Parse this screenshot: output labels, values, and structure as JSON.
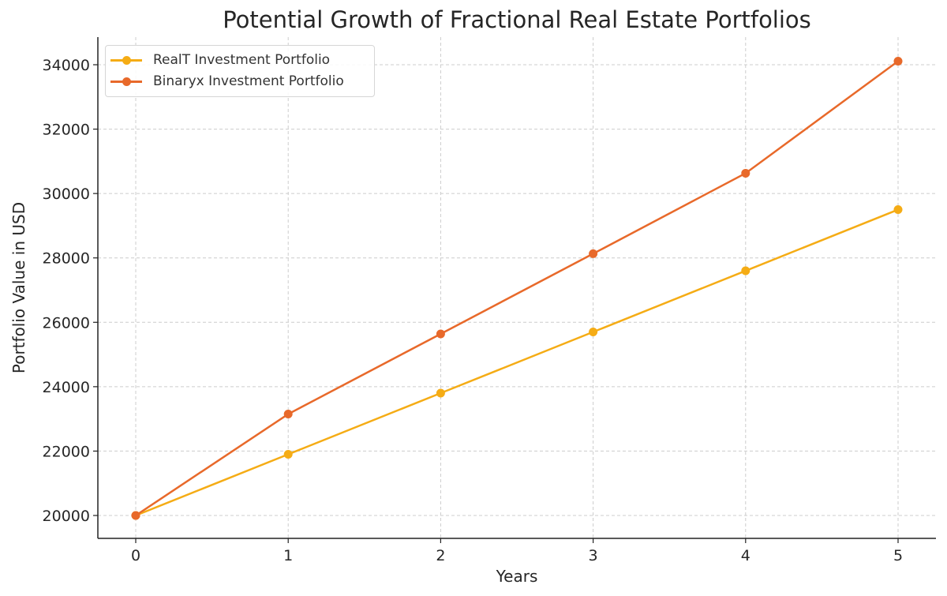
{
  "chart_data": {
    "type": "line",
    "title": "Potential Growth of Fractional Real Estate Portfolios",
    "xlabel": "Years",
    "ylabel": "Portfolio Value in USD",
    "x": [
      0,
      1,
      2,
      3,
      4,
      5
    ],
    "xticks": [
      "0",
      "1",
      "2",
      "3",
      "4",
      "5"
    ],
    "yticks": [
      "20000",
      "22000",
      "24000",
      "26000",
      "28000",
      "30000",
      "32000",
      "34000"
    ],
    "ylim": [
      19300,
      34800
    ],
    "xlim": [
      -0.25,
      5.25
    ],
    "grid": true,
    "legend_position": "upper left",
    "series": [
      {
        "name": "RealT Investment Portfolio",
        "color": "#f5ac15",
        "values": [
          20000,
          21900,
          23800,
          25700,
          27600,
          29500
        ]
      },
      {
        "name": "Binaryx Investment Portfolio",
        "color": "#e8692a",
        "values": [
          20000,
          23150,
          25640,
          28130,
          30630,
          34110
        ]
      }
    ]
  },
  "legend": {
    "items": [
      {
        "label": "RealT Investment Portfolio",
        "color": "#f5ac15"
      },
      {
        "label": "Binaryx Investment Portfolio",
        "color": "#e8692a"
      }
    ]
  }
}
